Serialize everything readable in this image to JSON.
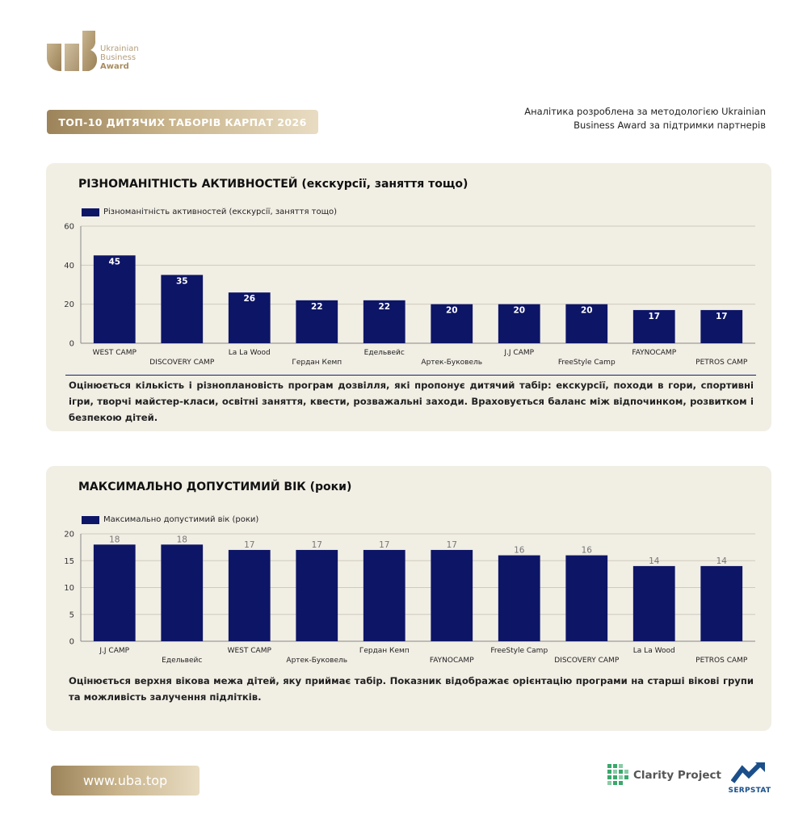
{
  "brand": {
    "logo_lines": [
      "Ukrainian",
      "Business",
      "Award"
    ],
    "gold": "#b49f7c"
  },
  "header": {
    "title_badge": "ТОП-10 ДИТЯЧИХ ТАБОРІВ КАРПАТ 2026",
    "methodology_line1": "Аналітика розроблена за методологією Ukrainian",
    "methodology_line2": "Business Award за підтримки партнерів"
  },
  "sections": [
    {
      "title": "РІЗНОМАНІТНІСТЬ АКТИВНОСТЕЙ (екскурсії, заняття тощо)",
      "description": "Оцінюється кількість і різноплановість програм дозвілля, які пропонує дитячий табір: екскурсії, походи в гори, спортивні ігри, творчі майстер-класи, освітні заняття, квести, розважальні заходи. Враховується баланс між відпочинком, розвитком і безпекою дітей."
    },
    {
      "title": "МАКСИМАЛЬНО ДОПУСТИМИЙ ВІК (роки)",
      "description": "Оцінюється верхня вікова межа дітей, яку приймає табір. Показник відображає орієнтацію програми на старші вікові групи та можливість залучення підлітків."
    }
  ],
  "chart_data": [
    {
      "type": "bar",
      "categories": [
        "WEST CAMP",
        "DISCOVERY CAMP",
        "La La Wood",
        "Гердан Кемп",
        "Едельвейс",
        "Артек-Буковель",
        "J.J CAMP",
        "FreeStyle Camp",
        "FAYNOCAMP",
        "PETROS CAMP"
      ],
      "series": [
        {
          "name": "Різноманітність активностей (екскурсії, заняття тощо)",
          "values": [
            45,
            35,
            26,
            22,
            22,
            20,
            20,
            20,
            17,
            17
          ]
        }
      ],
      "yticks": [
        0,
        20,
        40,
        60
      ],
      "ylim": [
        0,
        60
      ],
      "label_position": "inside",
      "grid": true,
      "legend_position": "top-left",
      "color": "#0d1567"
    },
    {
      "type": "bar",
      "categories": [
        "J.J CAMP",
        "Едельвейс",
        "WEST CAMP",
        "Артек-Буковель",
        "Гердан Кемп",
        "FAYNOCAMP",
        "FreeStyle Camp",
        "DISCOVERY CAMP",
        "La La Wood",
        "PETROS CAMP"
      ],
      "series": [
        {
          "name": "Максимально допустимий вік (роки)",
          "values": [
            18,
            18,
            17,
            17,
            17,
            17,
            16,
            16,
            14,
            14
          ]
        }
      ],
      "yticks": [
        0,
        5,
        10,
        15,
        20
      ],
      "ylim": [
        0,
        20
      ],
      "label_position": "above",
      "grid": true,
      "legend_position": "top-left",
      "color": "#0d1567"
    }
  ],
  "footer": {
    "url": "www.uba.top",
    "partners": [
      "Clarity Project",
      "SERPSTAT"
    ]
  }
}
